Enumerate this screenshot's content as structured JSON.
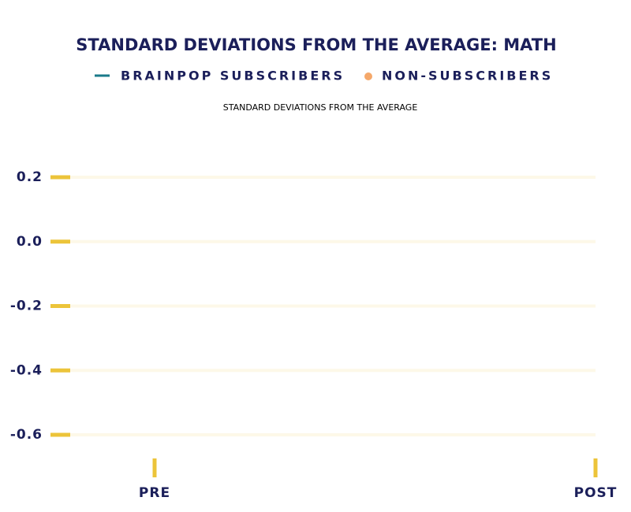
{
  "chart_data": {
    "type": "line",
    "title": "STANDARD DEVIATIONS FROM THE AVERAGE: MATH",
    "y_label": "STANDARD DEVIATIONS FROM THE AVERAGE",
    "categories": [
      "PRE",
      "POST"
    ],
    "series": [
      {
        "name": "BRAINPOP SUBSCRIBERS",
        "color": "#1a7a8a",
        "values": [
          null,
          null
        ]
      },
      {
        "name": "NON-SUBSCRIBERS",
        "color": "#f5a86a",
        "values": [
          null,
          null
        ]
      }
    ],
    "ylim": [
      -0.6,
      0.2
    ],
    "yticks": [
      0.2,
      {
        "value": 0,
        "label": "0.0"
      },
      -0.2,
      -0.4,
      -0.6
    ],
    "grid": true
  }
}
